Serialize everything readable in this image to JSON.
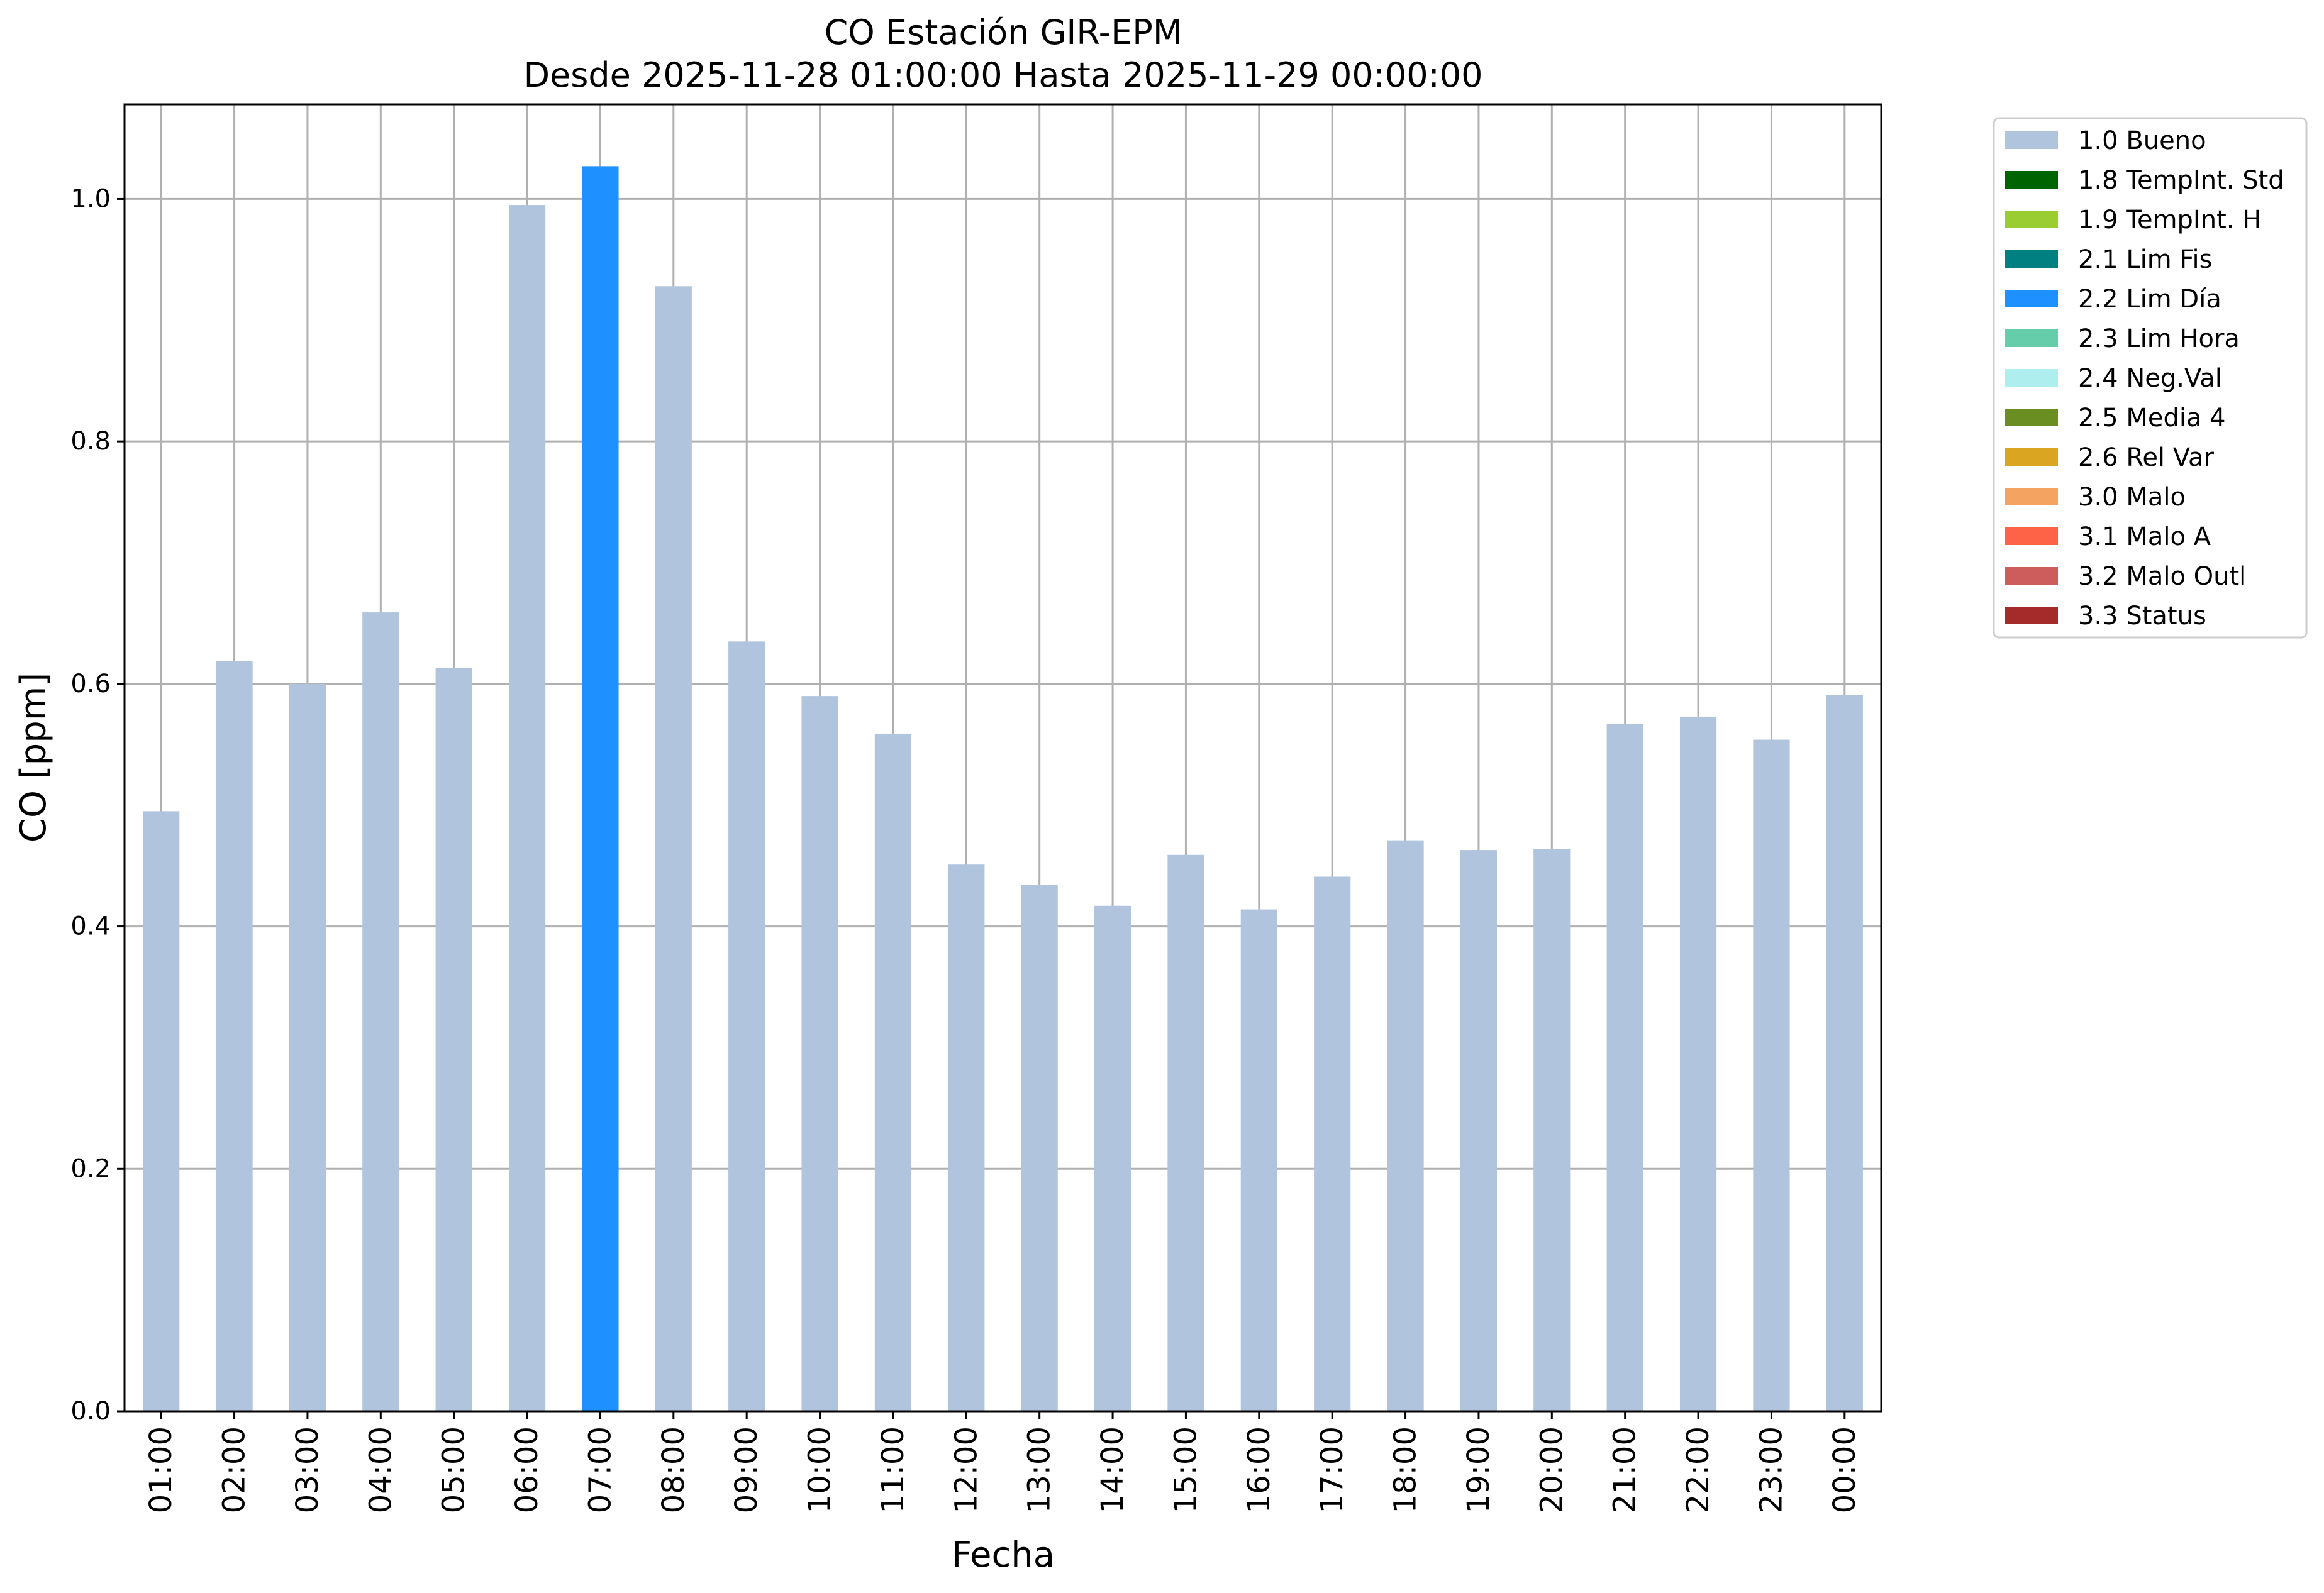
{
  "chart_data": {
    "type": "bar",
    "title_line1": "CO Estación GIR-EPM",
    "title_line2": "Desde 2025-11-28 01:00:00 Hasta 2025-11-29 00:00:00",
    "xlabel": "Fecha",
    "ylabel": "CO [ppm]",
    "ylim": [
      0,
      1.078
    ],
    "yticks": [
      "0.0",
      "0.2",
      "0.4",
      "0.6",
      "0.8",
      "1.0"
    ],
    "grid": true,
    "legend_position": "outside-top-right",
    "categories": [
      "01:00",
      "02:00",
      "03:00",
      "04:00",
      "05:00",
      "06:00",
      "07:00",
      "08:00",
      "09:00",
      "10:00",
      "11:00",
      "12:00",
      "13:00",
      "14:00",
      "15:00",
      "16:00",
      "17:00",
      "18:00",
      "19:00",
      "20:00",
      "21:00",
      "22:00",
      "23:00",
      "00:00"
    ],
    "values": [
      0.495,
      0.619,
      0.6,
      0.659,
      0.613,
      0.995,
      1.027,
      0.928,
      0.635,
      0.59,
      0.559,
      0.451,
      0.434,
      0.417,
      0.459,
      0.414,
      0.441,
      0.471,
      0.463,
      0.464,
      0.567,
      0.573,
      0.554,
      0.591
    ],
    "flags": [
      "1.0 Bueno",
      "1.0 Bueno",
      "1.0 Bueno",
      "1.0 Bueno",
      "1.0 Bueno",
      "1.0 Bueno",
      "2.2 Lim Día",
      "1.0 Bueno",
      "1.0 Bueno",
      "1.0 Bueno",
      "1.0 Bueno",
      "1.0 Bueno",
      "1.0 Bueno",
      "1.0 Bueno",
      "1.0 Bueno",
      "1.0 Bueno",
      "1.0 Bueno",
      "1.0 Bueno",
      "1.0 Bueno",
      "1.0 Bueno",
      "1.0 Bueno",
      "1.0 Bueno",
      "1.0 Bueno",
      "1.0 Bueno"
    ],
    "legend": [
      {
        "label": "1.0 Bueno",
        "color": "#B0C4DE"
      },
      {
        "label": "1.8 TempInt. Std",
        "color": "#006400"
      },
      {
        "label": "1.9 TempInt. H",
        "color": "#9ACD32"
      },
      {
        "label": "2.1 Lim Fis",
        "color": "#008080"
      },
      {
        "label": "2.2 Lim Día",
        "color": "#1E90FF"
      },
      {
        "label": "2.3 Lim Hora",
        "color": "#66CDAA"
      },
      {
        "label": "2.4 Neg.Val",
        "color": "#AFEEEE"
      },
      {
        "label": "2.5 Media 4",
        "color": "#6B8E23"
      },
      {
        "label": "2.6 Rel Var",
        "color": "#DAA520"
      },
      {
        "label": "3.0 Malo",
        "color": "#F4A460"
      },
      {
        "label": "3.1 Malo A",
        "color": "#FF6347"
      },
      {
        "label": "3.2 Malo Outl",
        "color": "#CD5C5C"
      },
      {
        "label": "3.3 Status",
        "color": "#A52A2A"
      }
    ],
    "grid_color": "#b0b0b0",
    "axis_color": "#000000"
  }
}
